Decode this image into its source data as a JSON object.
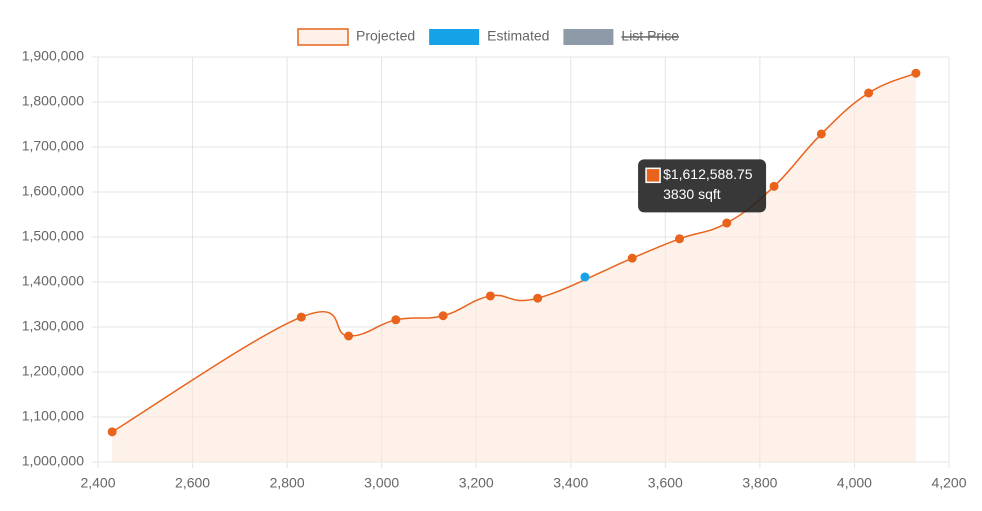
{
  "chart_data": {
    "type": "line",
    "series": [
      {
        "name": "Projected",
        "color": "#e8641c",
        "fill": "rgba(252,232,220,0.6)",
        "x": [
          2430,
          2830,
          2930,
          3030,
          3130,
          3230,
          3330,
          3530,
          3630,
          3730,
          3830,
          3930,
          4030,
          4130
        ],
        "values": [
          1067000,
          1322000,
          1280000,
          1316000,
          1325000,
          1369000,
          1364000,
          1453000,
          1496000,
          1531000,
          1612588.75,
          1729000,
          1820000,
          1864000
        ]
      },
      {
        "name": "Estimated",
        "color": "#16a2e6",
        "x": [
          3430
        ],
        "values": [
          1411000
        ]
      },
      {
        "name": "List Price",
        "color": "#8e9aa8",
        "hidden": true,
        "x": [],
        "values": []
      }
    ],
    "xlim": [
      2400,
      4200
    ],
    "xticks": [
      {
        "value": 2400,
        "label": "2,400"
      },
      {
        "value": 2600,
        "label": "2,600"
      },
      {
        "value": 2800,
        "label": "2,800"
      },
      {
        "value": 3000,
        "label": "3,000"
      },
      {
        "value": 3200,
        "label": "3,200"
      },
      {
        "value": 3400,
        "label": "3,400"
      },
      {
        "value": 3600,
        "label": "3,600"
      },
      {
        "value": 3800,
        "label": "3,800"
      },
      {
        "value": 4000,
        "label": "4,000"
      },
      {
        "value": 4200,
        "label": "4,200"
      }
    ],
    "ylim": [
      1000000,
      1900000
    ],
    "yticks": [
      {
        "value": 1000000,
        "label": "1,000,000"
      },
      {
        "value": 1100000,
        "label": "1,100,000"
      },
      {
        "value": 1200000,
        "label": "1,200,000"
      },
      {
        "value": 1300000,
        "label": "1,300,000"
      },
      {
        "value": 1400000,
        "label": "1,400,000"
      },
      {
        "value": 1500000,
        "label": "1,500,000"
      },
      {
        "value": 1600000,
        "label": "1,600,000"
      },
      {
        "value": 1700000,
        "label": "1,700,000"
      },
      {
        "value": 1800000,
        "label": "1,800,000"
      },
      {
        "value": 1900000,
        "label": "1,900,000"
      }
    ],
    "grid": true,
    "legend": "top",
    "tooltip": {
      "series": 0,
      "index": 10,
      "label": "$1,612,588.75",
      "detail": "3830 sqft"
    }
  }
}
